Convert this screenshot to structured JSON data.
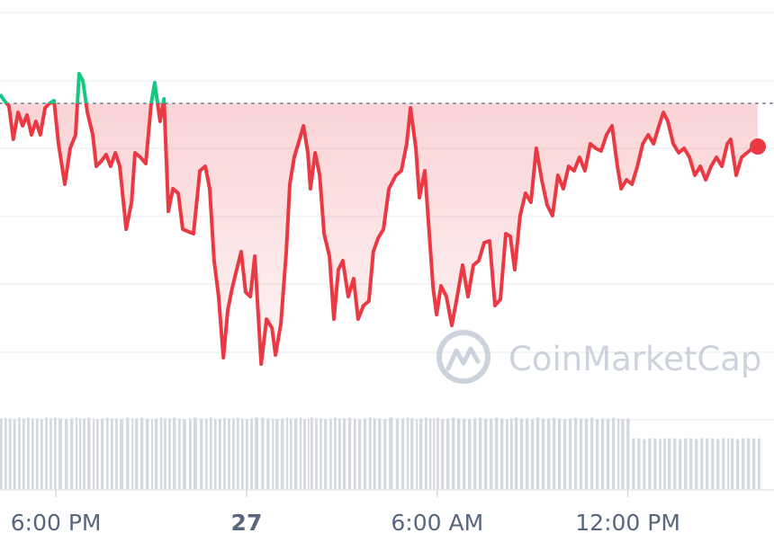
{
  "chart_data": {
    "type": "line",
    "x": [
      16.24,
      16.38,
      16.52,
      16.66,
      16.81,
      16.95,
      17.09,
      17.23,
      17.37,
      17.51,
      17.66,
      17.8,
      17.94,
      18.08,
      18.28,
      18.45,
      18.62,
      18.73,
      18.85,
      18.99,
      19.16,
      19.27,
      19.41,
      19.58,
      19.72,
      19.87,
      20.01,
      20.21,
      20.38,
      20.49,
      20.66,
      20.83,
      21.0,
      21.11,
      21.28,
      21.4,
      21.54,
      21.68,
      21.85,
      21.99,
      22.19,
      22.33,
      22.53,
      22.7,
      22.84,
      22.98,
      23.12,
      23.27,
      23.41,
      23.55,
      23.69,
      23.83,
      23.97,
      24.12,
      24.26,
      24.46,
      24.63,
      24.8,
      24.91,
      25.08,
      25.25,
      25.36,
      25.5,
      25.67,
      25.79,
      25.93,
      26.01,
      26.16,
      26.3,
      26.44,
      26.61,
      26.75,
      26.89,
      27.03,
      27.2,
      27.37,
      27.51,
      27.68,
      27.85,
      27.99,
      28.14,
      28.31,
      28.48,
      28.7,
      28.87,
      29.04,
      29.16,
      29.33,
      29.44,
      29.61,
      29.75,
      29.87,
      29.98,
      30.12,
      30.29,
      30.46,
      30.63,
      30.8,
      30.97,
      31.14,
      31.31,
      31.48,
      31.65,
      31.82,
      31.99,
      32.16,
      32.3,
      32.44,
      32.61,
      32.78,
      32.95,
      33.12,
      33.29,
      33.46,
      33.63,
      33.8,
      33.97,
      34.14,
      34.31,
      34.48,
      34.65,
      34.82,
      34.99,
      35.16,
      35.33,
      35.5,
      35.67,
      35.79,
      35.96,
      36.13,
      36.3,
      36.47,
      36.64,
      36.81,
      36.98,
      37.12,
      37.26,
      37.43,
      37.6,
      37.77,
      37.94,
      38.11,
      38.28,
      38.45,
      38.62,
      38.79,
      38.96,
      39.13,
      39.24,
      39.41,
      39.58,
      39.75,
      39.92,
      40.09
    ],
    "values": [
      362,
      355,
      349,
      312,
      342,
      327,
      339,
      317,
      332,
      317,
      347,
      352,
      355,
      307,
      262,
      302,
      317,
      385,
      377,
      342,
      317,
      282,
      287,
      295,
      282,
      297,
      282,
      212,
      242,
      297,
      292,
      285,
      352,
      375,
      332,
      357,
      232,
      257,
      252,
      212,
      209,
      207,
      277,
      282,
      257,
      177,
      137,
      69,
      122,
      147,
      167,
      187,
      142,
      137,
      182,
      62,
      112,
      102,
      72,
      107,
      187,
      262,
      292,
      312,
      327,
      297,
      257,
      297,
      272,
      207,
      182,
      112,
      167,
      177,
      137,
      157,
      112,
      127,
      132,
      187,
      202,
      212,
      257,
      272,
      277,
      307,
      347,
      302,
      247,
      277,
      207,
      147,
      117,
      149,
      137,
      105,
      137,
      172,
      137,
      172,
      177,
      197,
      199,
      127,
      134,
      207,
      204,
      167,
      227,
      252,
      242,
      302,
      267,
      239,
      227,
      272,
      257,
      282,
      277,
      292,
      277,
      307,
      302,
      299,
      317,
      327,
      282,
      257,
      267,
      262,
      282,
      307,
      317,
      307,
      327,
      342,
      332,
      307,
      297,
      302,
      292,
      272,
      282,
      267,
      282,
      292,
      282,
      307,
      312,
      272,
      292,
      297,
      302,
      304
    ],
    "volume": [
      97,
      98,
      97,
      96,
      98,
      97,
      98,
      97,
      97,
      96,
      98,
      97,
      98,
      97,
      96,
      97,
      98,
      97,
      97,
      98,
      97,
      96,
      97,
      98,
      97,
      97,
      96,
      98,
      97,
      97,
      98,
      97,
      96,
      97,
      98,
      97,
      97,
      98,
      97,
      96,
      97,
      98,
      97,
      97,
      98,
      96,
      97,
      98,
      97,
      97,
      98,
      97,
      96,
      97,
      98,
      98,
      97,
      97,
      96,
      97,
      98,
      97,
      97,
      98,
      96,
      97,
      98,
      97,
      97,
      96,
      97,
      98,
      97,
      97,
      98,
      97,
      96,
      97,
      98,
      97,
      97,
      96,
      98,
      97,
      97,
      98,
      97,
      96,
      97,
      98,
      97,
      97,
      98,
      96,
      97,
      98,
      97,
      97,
      96,
      97,
      98,
      97,
      97,
      98,
      97,
      96,
      97,
      98,
      97,
      97,
      96,
      98,
      97,
      97,
      98,
      97,
      96,
      97,
      98,
      97,
      97,
      98,
      96,
      97,
      97,
      98,
      97,
      96,
      97,
      70,
      70,
      69,
      70,
      70,
      69,
      70,
      70,
      70,
      69,
      70,
      70,
      69,
      70,
      70,
      70,
      69,
      70,
      70,
      70,
      69,
      70,
      70,
      70,
      70
    ],
    "xlim": [
      16.24,
      40.6
    ],
    "ylim": [
      0,
      453
    ],
    "volume_ylim": [
      0,
      100
    ],
    "xticks": [
      {
        "value": 18,
        "label": "6:00 PM"
      },
      {
        "value": 24,
        "label": "27",
        "bold": true
      },
      {
        "value": 30,
        "label": "6:00 AM"
      },
      {
        "value": 36,
        "label": "12:00 PM"
      }
    ],
    "baseline": 352,
    "color_up": "#16c784",
    "color_down": "#ea3943",
    "volume_color": "#d5d9df",
    "watermark": "CoinMarketCap"
  }
}
